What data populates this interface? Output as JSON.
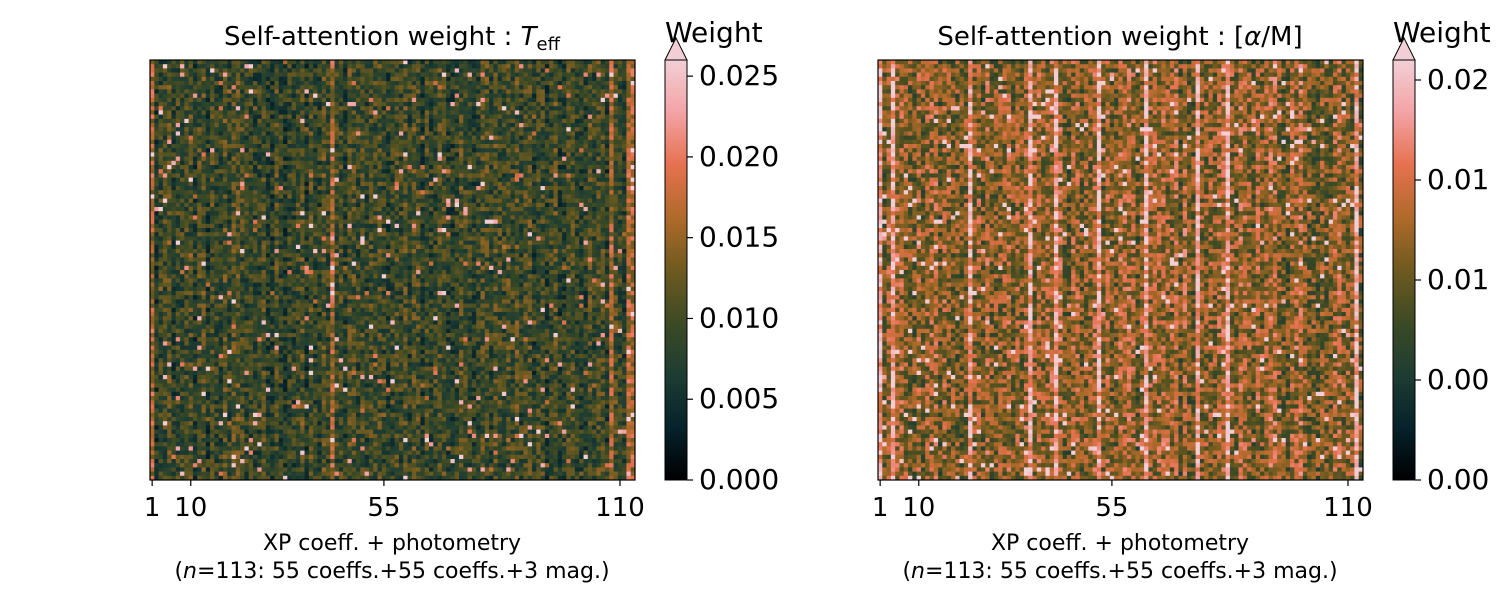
{
  "colors": {
    "cmap": [
      "#000000",
      "#06222b",
      "#1d3d33",
      "#3d4a24",
      "#6e5a20",
      "#b06a2a",
      "#e6714f",
      "#f3a3a5",
      "#f2cfd6"
    ],
    "frame": "#000000"
  },
  "panels": [
    {
      "title_prefix": "Self-attention weight : ",
      "title_symbol": "T",
      "title_subscript": "eff",
      "colorbar_title": "Weight",
      "xlabel_line1": "XP coeff. + photometry",
      "xlabel_n": "n",
      "xlabel_line2": "=113: 55 coeffs.+55 coeffs.+3 mag.)",
      "xlabel_open": "(",
      "chart_data": {
        "type": "heatmap",
        "n_features": 113,
        "x_ticks": [
          1,
          10,
          55,
          110
        ],
        "x_tick_labels": [
          "1",
          "10",
          "55",
          "110"
        ],
        "colorbar_ticks": [
          0.0,
          0.005,
          0.01,
          0.015,
          0.02,
          0.025
        ],
        "colorbar_tick_labels": [
          "0.000",
          "0.005",
          "0.010",
          "0.015",
          "0.020",
          "0.025"
        ],
        "vmin": 0.0,
        "vmax": 0.026,
        "extend": "max",
        "typical_weight": 0.009,
        "bright_columns": [
          1,
          43,
          108,
          112,
          113
        ]
      }
    },
    {
      "title_prefix": "Self-attention weight : [",
      "title_symbol": "α",
      "title_subscript": "",
      "title_suffix": "/M]",
      "colorbar_title": "Weight",
      "xlabel_line1": "XP coeff. + photometry",
      "xlabel_n": "n",
      "xlabel_line2": "=113: 55 coeffs.+55 coeffs.+3 mag.)",
      "xlabel_open": "(",
      "chart_data": {
        "type": "heatmap",
        "n_features": 113,
        "x_ticks": [
          1,
          10,
          55,
          110
        ],
        "x_tick_labels": [
          "1",
          "10",
          "55",
          "110"
        ],
        "colorbar_ticks": [
          0.0,
          0.005,
          0.01,
          0.015,
          0.02
        ],
        "colorbar_tick_labels": [
          "0.00",
          "0.00",
          "0.01",
          "0.01",
          "0.02"
        ],
        "vmin": 0.0,
        "vmax": 0.021,
        "extend": "max",
        "typical_weight": 0.0115,
        "bright_columns": [
          1,
          4,
          22,
          36,
          42,
          52,
          63,
          75,
          82,
          112
        ]
      }
    }
  ]
}
